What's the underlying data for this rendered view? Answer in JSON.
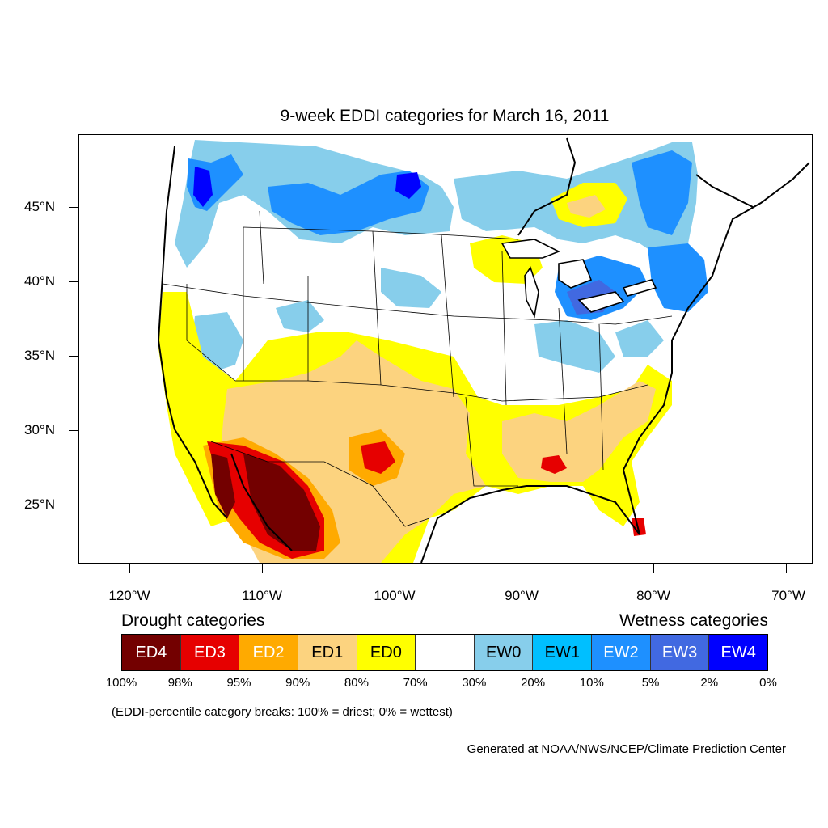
{
  "title": "9-week EDDI categories for March 16, 2011",
  "latitude_labels": [
    "45°N",
    "40°N",
    "35°N",
    "30°N",
    "25°N"
  ],
  "longitude_labels": [
    "120°W",
    "110°W",
    "100°W",
    "90°W",
    "80°W",
    "70°W"
  ],
  "legend": {
    "drought_heading": "Drought categories",
    "wetness_heading": "Wetness categories",
    "categories": [
      {
        "label": "ED4",
        "color": "#730000",
        "text_color": "#ffffff"
      },
      {
        "label": "ED3",
        "color": "#e60000",
        "text_color": "#ffffff"
      },
      {
        "label": "ED2",
        "color": "#ffaa00",
        "text_color": "#ffffff"
      },
      {
        "label": "ED1",
        "color": "#fcd37f",
        "text_color": "#000000"
      },
      {
        "label": "ED0",
        "color": "#ffff00",
        "text_color": "#000000"
      },
      {
        "label": "",
        "color": "#ffffff",
        "text_color": "#000000"
      },
      {
        "label": "EW0",
        "color": "#87ceeb",
        "text_color": "#000000"
      },
      {
        "label": "EW1",
        "color": "#00bfff",
        "text_color": "#000000"
      },
      {
        "label": "EW2",
        "color": "#1e90ff",
        "text_color": "#ffffff"
      },
      {
        "label": "EW3",
        "color": "#4169e1",
        "text_color": "#ffffff"
      },
      {
        "label": "EW4",
        "color": "#0000ff",
        "text_color": "#ffffff"
      }
    ],
    "breaks": [
      "100%",
      "98%",
      "95%",
      "90%",
      "80%",
      "70%",
      "30%",
      "20%",
      "10%",
      "5%",
      "2%",
      "0%"
    ]
  },
  "note": "(EDDI-percentile category breaks: 100% = driest; 0% = wettest)",
  "credit": "Generated at NOAA/NWS/NCEP/Climate Prediction Center"
}
